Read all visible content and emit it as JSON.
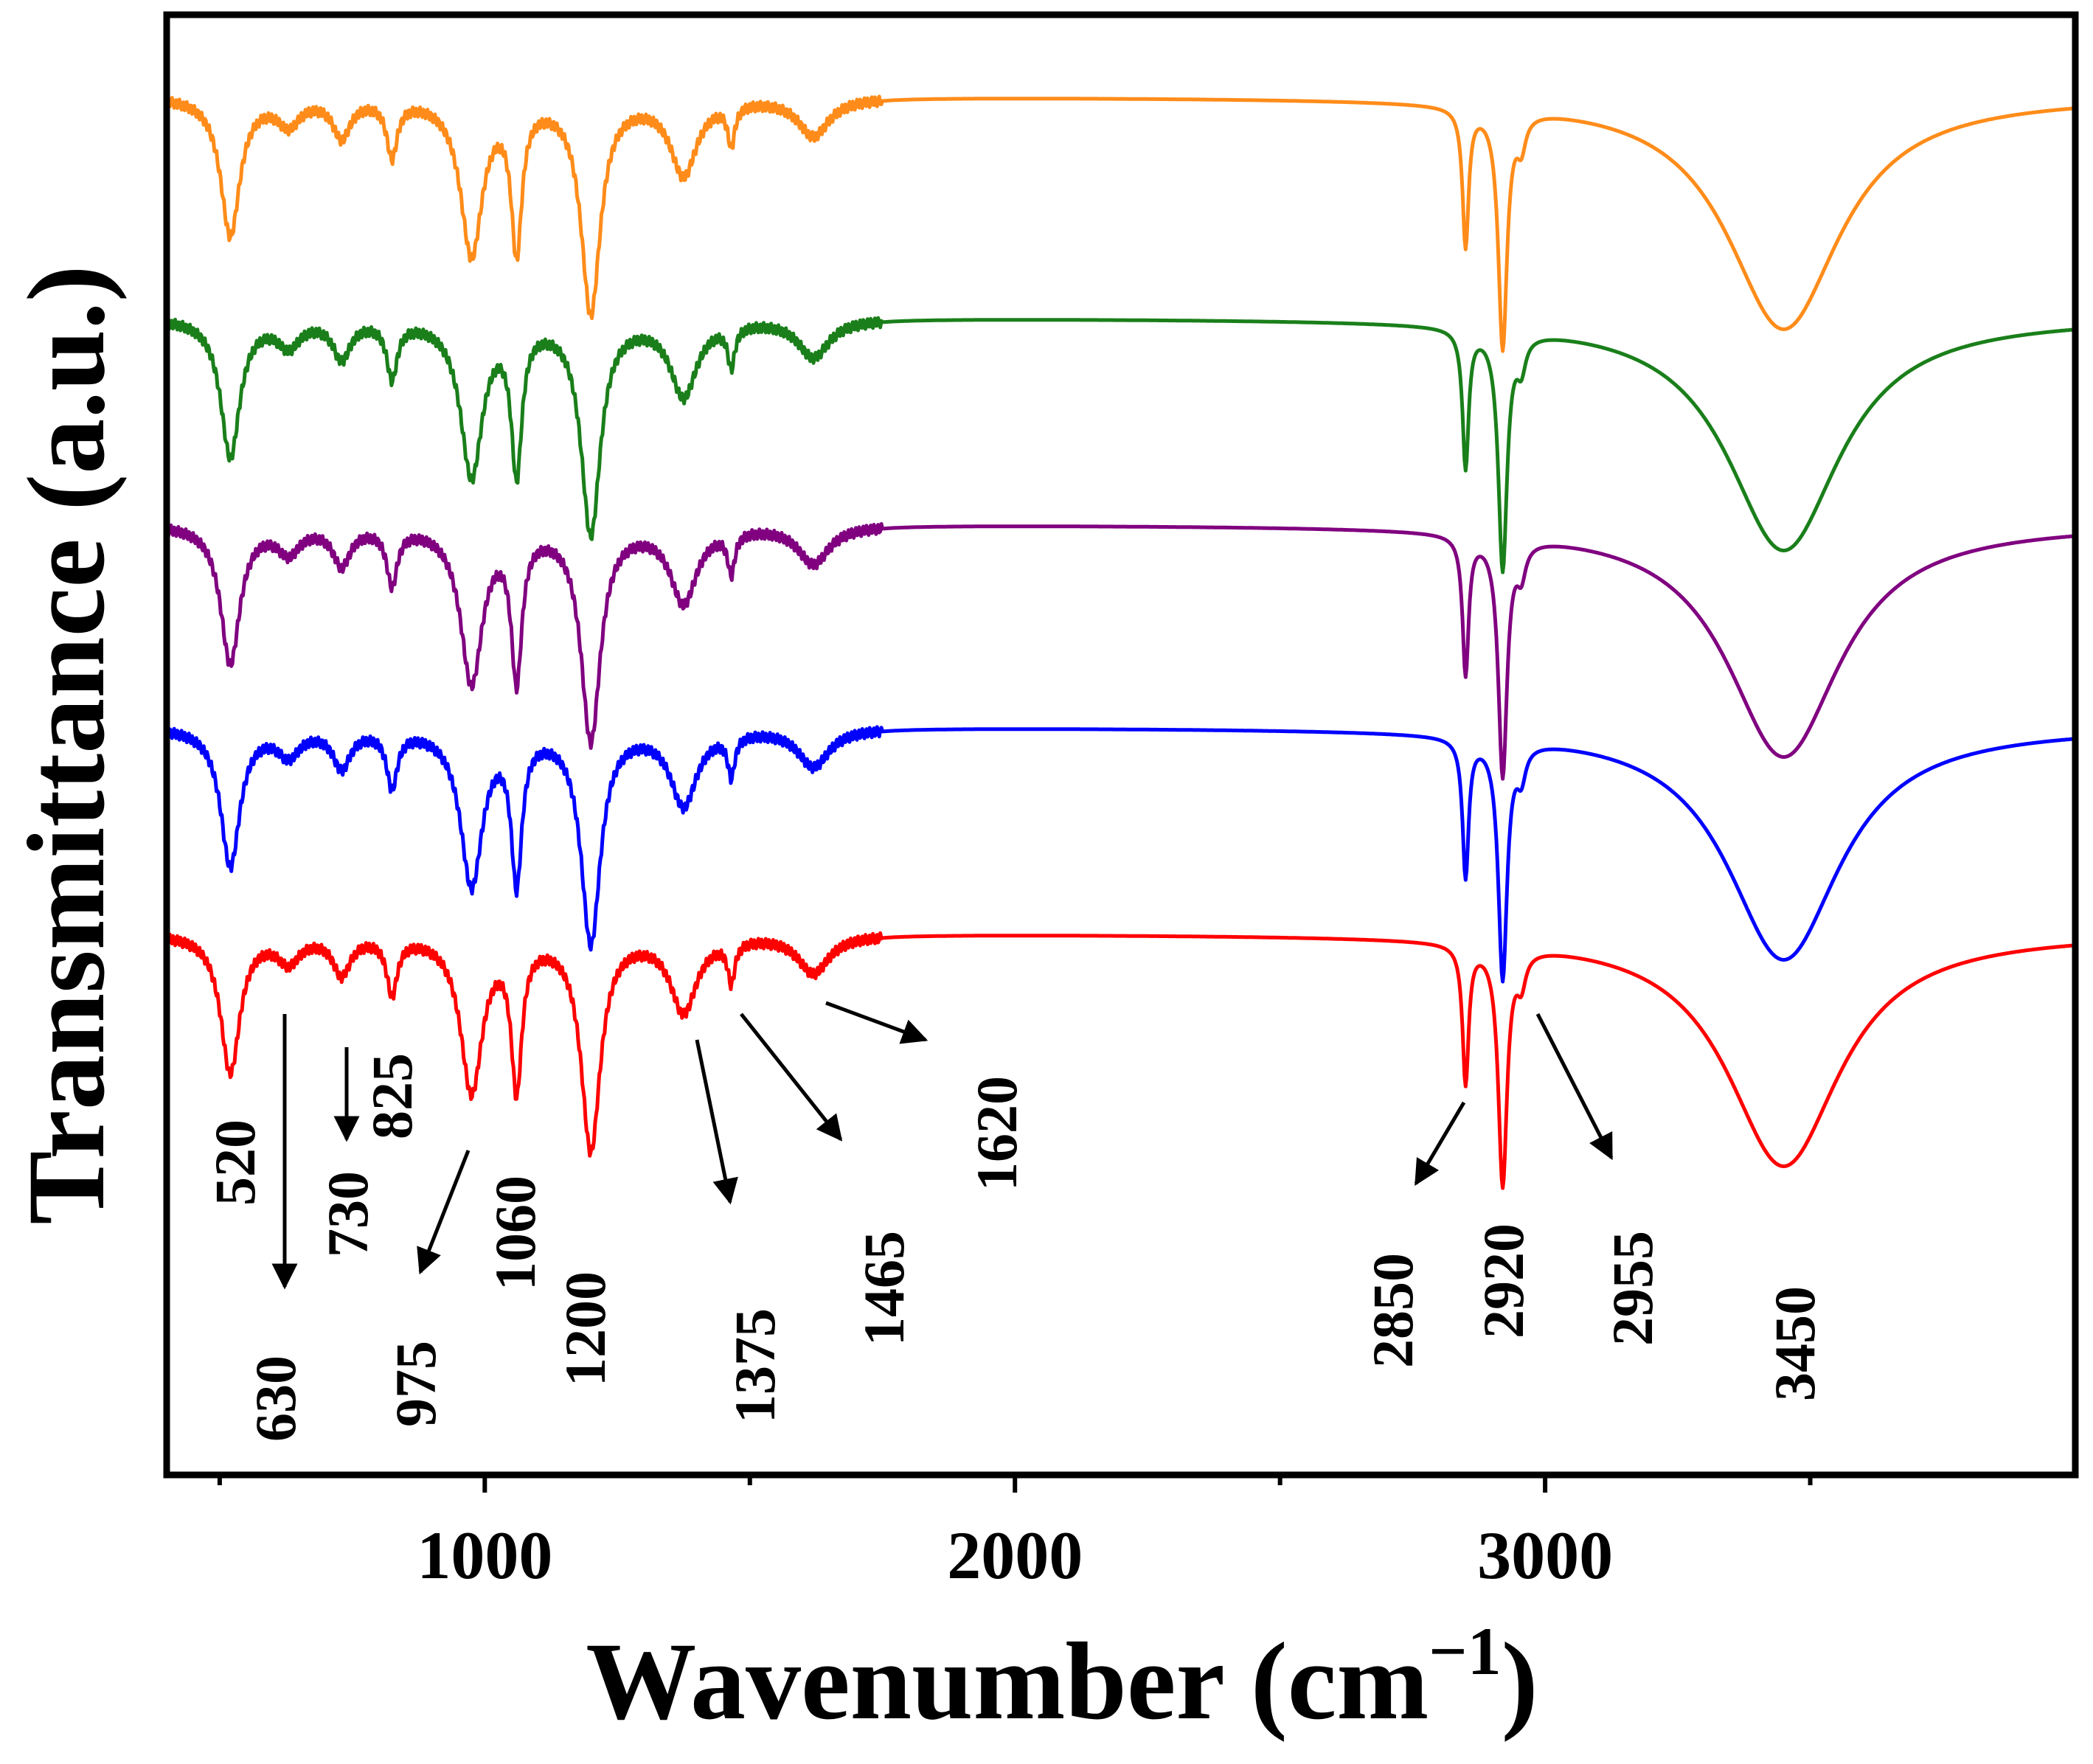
{
  "chart_data": {
    "type": "line",
    "title": "",
    "xlabel_main": "Wavenumber (cm",
    "xlabel_sup": "−1",
    "xlabel_close": ")",
    "ylabel": "Transmittance (a.u.)",
    "xlim": [
      400,
      4000
    ],
    "x_ticks": [
      1000,
      2000,
      3000
    ],
    "x_tick_labels": [
      "1000",
      "2000",
      "3000"
    ],
    "y_ticks_shown": false,
    "grid": false,
    "legend": "none",
    "series": [
      {
        "name": "orange",
        "color": "#FF8C1A",
        "offset": 4
      },
      {
        "name": "green",
        "color": "#1A7F1A",
        "offset": 3
      },
      {
        "name": "purple",
        "color": "#800080",
        "offset": 2
      },
      {
        "name": "blue",
        "color": "#0000FF",
        "offset": 1
      },
      {
        "name": "red",
        "color": "#FF0000",
        "offset": 0
      }
    ],
    "bands": [
      {
        "x": 520,
        "depth": 0.55,
        "width": 22
      },
      {
        "x": 630,
        "depth": 0.1,
        "width": 25
      },
      {
        "x": 730,
        "depth": 0.15,
        "width": 20
      },
      {
        "x": 825,
        "depth": 0.22,
        "width": 12
      },
      {
        "x": 975,
        "depth": 0.62,
        "width": 25
      },
      {
        "x": 1060,
        "depth": 0.58,
        "width": 12
      },
      {
        "x": 1200,
        "depth": 0.85,
        "width": 22
      },
      {
        "x": 1375,
        "depth": 0.3,
        "width": 30
      },
      {
        "x": 1465,
        "depth": 0.16,
        "width": 8
      },
      {
        "x": 1620,
        "depth": 0.15,
        "width": 35
      },
      {
        "x": 2850,
        "depth": 0.55,
        "width": 7
      },
      {
        "x": 2920,
        "depth": 0.95,
        "width": 10
      },
      {
        "x": 2955,
        "depth": 0.12,
        "width": 10
      },
      {
        "x": 3450,
        "depth": 0.93,
        "width": 130
      }
    ],
    "annotations": [
      {
        "label": "520",
        "x": 520
      },
      {
        "label": "630",
        "x": 630
      },
      {
        "label": "730",
        "x": 730
      },
      {
        "label": "825",
        "x": 825
      },
      {
        "label": "975",
        "x": 975
      },
      {
        "label": "1060",
        "x": 1060
      },
      {
        "label": "1200",
        "x": 1200
      },
      {
        "label": "1375",
        "x": 1375
      },
      {
        "label": "1465",
        "x": 1465
      },
      {
        "label": "1620",
        "x": 1620
      },
      {
        "label": "2850",
        "x": 2850
      },
      {
        "label": "2920",
        "x": 2920
      },
      {
        "label": "2955",
        "x": 2955
      },
      {
        "label": "3450",
        "x": 3450
      }
    ]
  }
}
